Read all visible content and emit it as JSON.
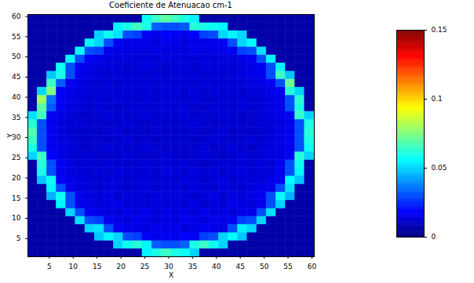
{
  "chart_data": {
    "type": "heatmap",
    "title": "Coeficiente de Atenuacao cm-1",
    "x_label": "X",
    "y_label": "Y",
    "x": [
      1.5,
      3.5,
      5.5,
      7.5,
      9.5,
      11.5,
      13.5,
      15.5,
      17.5,
      19.5,
      21.5,
      23.5,
      25.5,
      27.5,
      29.5,
      31.5,
      33.5,
      35.5,
      37.5,
      39.5,
      41.5,
      43.5,
      45.5,
      47.5,
      49.5,
      51.5,
      53.5,
      55.5,
      57.5,
      59.5
    ],
    "y": [
      1.5,
      3.5,
      5.5,
      7.5,
      9.5,
      11.5,
      13.5,
      15.5,
      17.5,
      19.5,
      21.5,
      23.5,
      25.5,
      27.5,
      29.5,
      31.5,
      33.5,
      35.5,
      37.5,
      39.5,
      41.5,
      43.5,
      45.5,
      47.5,
      49.5,
      51.5,
      53.5,
      55.5,
      57.5,
      59.5
    ],
    "values": [
      [
        0.006,
        0.006,
        0.006,
        0.006,
        0.006,
        0.006,
        0.006,
        0.006,
        0.006,
        0.006,
        0.006,
        0.006,
        0.055,
        0.06,
        0.065,
        0.06,
        0.058,
        0.05,
        0.006,
        0.006,
        0.006,
        0.006,
        0.006,
        0.006,
        0.006,
        0.006,
        0.006,
        0.006,
        0.006,
        0.006
      ],
      [
        0.006,
        0.006,
        0.006,
        0.006,
        0.006,
        0.006,
        0.006,
        0.006,
        0.006,
        0.05,
        0.058,
        0.062,
        0.055,
        0.032,
        0.03,
        0.03,
        0.033,
        0.06,
        0.065,
        0.058,
        0.05,
        0.006,
        0.006,
        0.006,
        0.006,
        0.006,
        0.006,
        0.006,
        0.006,
        0.006
      ],
      [
        0.006,
        0.006,
        0.006,
        0.006,
        0.006,
        0.006,
        0.006,
        0.048,
        0.055,
        0.05,
        0.03,
        0.028,
        0.018,
        0.016,
        0.017,
        0.016,
        0.018,
        0.017,
        0.028,
        0.03,
        0.05,
        0.056,
        0.048,
        0.006,
        0.006,
        0.006,
        0.006,
        0.006,
        0.006,
        0.006
      ],
      [
        0.006,
        0.006,
        0.006,
        0.006,
        0.006,
        0.006,
        0.05,
        0.052,
        0.03,
        0.017,
        0.015,
        0.016,
        0.014,
        0.016,
        0.015,
        0.016,
        0.014,
        0.015,
        0.017,
        0.016,
        0.015,
        0.03,
        0.054,
        0.05,
        0.006,
        0.006,
        0.006,
        0.006,
        0.006,
        0.006
      ],
      [
        0.006,
        0.006,
        0.006,
        0.006,
        0.006,
        0.052,
        0.03,
        0.028,
        0.016,
        0.015,
        0.014,
        0.016,
        0.015,
        0.013,
        0.015,
        0.014,
        0.016,
        0.015,
        0.014,
        0.016,
        0.015,
        0.017,
        0.028,
        0.03,
        0.05,
        0.006,
        0.006,
        0.006,
        0.006,
        0.006
      ],
      [
        0.006,
        0.006,
        0.006,
        0.006,
        0.05,
        0.03,
        0.017,
        0.015,
        0.014,
        0.013,
        0.015,
        0.014,
        0.016,
        0.013,
        0.015,
        0.014,
        0.015,
        0.013,
        0.016,
        0.014,
        0.015,
        0.013,
        0.015,
        0.016,
        0.03,
        0.052,
        0.006,
        0.006,
        0.006,
        0.006
      ],
      [
        0.006,
        0.006,
        0.006,
        0.055,
        0.03,
        0.016,
        0.015,
        0.013,
        0.014,
        0.015,
        0.013,
        0.014,
        0.012,
        0.014,
        0.013,
        0.014,
        0.013,
        0.015,
        0.012,
        0.014,
        0.013,
        0.015,
        0.014,
        0.013,
        0.016,
        0.03,
        0.05,
        0.006,
        0.006,
        0.006
      ],
      [
        0.006,
        0.006,
        0.045,
        0.058,
        0.03,
        0.016,
        0.014,
        0.013,
        0.015,
        0.012,
        0.014,
        0.013,
        0.012,
        0.014,
        0.013,
        0.013,
        0.014,
        0.012,
        0.013,
        0.015,
        0.012,
        0.014,
        0.013,
        0.015,
        0.016,
        0.03,
        0.056,
        0.045,
        0.006,
        0.006
      ],
      [
        0.006,
        0.006,
        0.055,
        0.03,
        0.016,
        0.014,
        0.013,
        0.012,
        0.014,
        0.013,
        0.012,
        0.013,
        0.014,
        0.012,
        0.013,
        0.013,
        0.012,
        0.014,
        0.013,
        0.012,
        0.014,
        0.013,
        0.012,
        0.014,
        0.015,
        0.016,
        0.03,
        0.052,
        0.006,
        0.006
      ],
      [
        0.006,
        0.048,
        0.058,
        0.018,
        0.015,
        0.014,
        0.013,
        0.012,
        0.014,
        0.013,
        0.012,
        0.013,
        0.014,
        0.012,
        0.013,
        0.012,
        0.014,
        0.013,
        0.012,
        0.013,
        0.014,
        0.012,
        0.013,
        0.014,
        0.013,
        0.015,
        0.017,
        0.056,
        0.048,
        0.006
      ],
      [
        0.006,
        0.06,
        0.03,
        0.016,
        0.014,
        0.013,
        0.012,
        0.013,
        0.012,
        0.014,
        0.013,
        0.012,
        0.013,
        0.012,
        0.014,
        0.013,
        0.012,
        0.014,
        0.012,
        0.013,
        0.012,
        0.013,
        0.014,
        0.012,
        0.013,
        0.014,
        0.016,
        0.03,
        0.055,
        0.006
      ],
      [
        0.006,
        0.062,
        0.03,
        0.017,
        0.014,
        0.012,
        0.013,
        0.012,
        0.013,
        0.012,
        0.011,
        0.012,
        0.013,
        0.012,
        0.013,
        0.012,
        0.013,
        0.012,
        0.011,
        0.012,
        0.013,
        0.012,
        0.013,
        0.012,
        0.014,
        0.013,
        0.016,
        0.03,
        0.058,
        0.006
      ],
      [
        0.05,
        0.065,
        0.018,
        0.015,
        0.013,
        0.012,
        0.013,
        0.012,
        0.011,
        0.012,
        0.013,
        0.012,
        0.011,
        0.012,
        0.013,
        0.012,
        0.011,
        0.012,
        0.013,
        0.012,
        0.011,
        0.012,
        0.013,
        0.012,
        0.013,
        0.014,
        0.015,
        0.017,
        0.062,
        0.05
      ],
      [
        0.06,
        0.03,
        0.017,
        0.015,
        0.013,
        0.012,
        0.011,
        0.012,
        0.013,
        0.012,
        0.011,
        0.012,
        0.013,
        0.012,
        0.011,
        0.012,
        0.011,
        0.012,
        0.013,
        0.011,
        0.012,
        0.013,
        0.012,
        0.011,
        0.013,
        0.014,
        0.015,
        0.016,
        0.03,
        0.058
      ],
      [
        0.065,
        0.03,
        0.016,
        0.014,
        0.013,
        0.012,
        0.011,
        0.012,
        0.011,
        0.012,
        0.013,
        0.011,
        0.012,
        0.011,
        0.012,
        0.011,
        0.012,
        0.011,
        0.012,
        0.013,
        0.012,
        0.011,
        0.012,
        0.013,
        0.012,
        0.014,
        0.015,
        0.017,
        0.03,
        0.06
      ],
      [
        0.068,
        0.03,
        0.017,
        0.014,
        0.012,
        0.011,
        0.012,
        0.011,
        0.012,
        0.013,
        0.011,
        0.012,
        0.011,
        0.012,
        0.011,
        0.012,
        0.011,
        0.012,
        0.011,
        0.012,
        0.013,
        0.011,
        0.012,
        0.011,
        0.012,
        0.013,
        0.015,
        0.016,
        0.03,
        0.062
      ],
      [
        0.062,
        0.03,
        0.016,
        0.014,
        0.012,
        0.013,
        0.011,
        0.012,
        0.011,
        0.012,
        0.013,
        0.012,
        0.011,
        0.012,
        0.012,
        0.011,
        0.012,
        0.013,
        0.012,
        0.011,
        0.012,
        0.012,
        0.011,
        0.012,
        0.013,
        0.013,
        0.014,
        0.016,
        0.03,
        0.06
      ],
      [
        0.052,
        0.066,
        0.017,
        0.015,
        0.013,
        0.012,
        0.011,
        0.012,
        0.013,
        0.012,
        0.011,
        0.012,
        0.013,
        0.012,
        0.012,
        0.012,
        0.013,
        0.011,
        0.012,
        0.012,
        0.013,
        0.012,
        0.011,
        0.012,
        0.013,
        0.014,
        0.015,
        0.018,
        0.064,
        0.05
      ],
      [
        0.006,
        0.07,
        0.032,
        0.017,
        0.014,
        0.013,
        0.012,
        0.013,
        0.012,
        0.011,
        0.012,
        0.013,
        0.012,
        0.012,
        0.013,
        0.012,
        0.013,
        0.012,
        0.011,
        0.013,
        0.012,
        0.012,
        0.013,
        0.012,
        0.013,
        0.014,
        0.016,
        0.03,
        0.06,
        0.006
      ],
      [
        0.006,
        0.08,
        0.035,
        0.018,
        0.015,
        0.013,
        0.012,
        0.013,
        0.012,
        0.013,
        0.012,
        0.012,
        0.013,
        0.012,
        0.013,
        0.013,
        0.012,
        0.013,
        0.012,
        0.012,
        0.013,
        0.012,
        0.013,
        0.012,
        0.013,
        0.014,
        0.016,
        0.03,
        0.062,
        0.006
      ],
      [
        0.006,
        0.05,
        0.075,
        0.018,
        0.015,
        0.014,
        0.013,
        0.012,
        0.013,
        0.012,
        0.013,
        0.012,
        0.013,
        0.012,
        0.013,
        0.013,
        0.012,
        0.013,
        0.012,
        0.013,
        0.012,
        0.013,
        0.012,
        0.013,
        0.014,
        0.015,
        0.017,
        0.062,
        0.05,
        0.006
      ],
      [
        0.006,
        0.006,
        0.065,
        0.032,
        0.017,
        0.015,
        0.013,
        0.012,
        0.013,
        0.012,
        0.013,
        0.012,
        0.013,
        0.012,
        0.013,
        0.012,
        0.013,
        0.012,
        0.013,
        0.012,
        0.013,
        0.012,
        0.013,
        0.014,
        0.015,
        0.017,
        0.03,
        0.072,
        0.006,
        0.006
      ],
      [
        0.006,
        0.006,
        0.048,
        0.06,
        0.03,
        0.016,
        0.014,
        0.013,
        0.012,
        0.013,
        0.012,
        0.013,
        0.012,
        0.013,
        0.012,
        0.013,
        0.012,
        0.013,
        0.012,
        0.013,
        0.012,
        0.013,
        0.014,
        0.015,
        0.016,
        0.03,
        0.065,
        0.048,
        0.006,
        0.006
      ],
      [
        0.006,
        0.006,
        0.006,
        0.058,
        0.03,
        0.017,
        0.015,
        0.013,
        0.014,
        0.013,
        0.012,
        0.013,
        0.014,
        0.013,
        0.012,
        0.013,
        0.014,
        0.012,
        0.013,
        0.014,
        0.013,
        0.012,
        0.014,
        0.015,
        0.017,
        0.03,
        0.055,
        0.006,
        0.006,
        0.006
      ],
      [
        0.006,
        0.006,
        0.006,
        0.006,
        0.055,
        0.03,
        0.017,
        0.015,
        0.014,
        0.013,
        0.014,
        0.013,
        0.014,
        0.013,
        0.014,
        0.013,
        0.014,
        0.013,
        0.014,
        0.013,
        0.014,
        0.013,
        0.015,
        0.017,
        0.03,
        0.055,
        0.006,
        0.006,
        0.006,
        0.006
      ],
      [
        0.006,
        0.006,
        0.006,
        0.006,
        0.006,
        0.056,
        0.03,
        0.028,
        0.016,
        0.015,
        0.014,
        0.015,
        0.014,
        0.015,
        0.014,
        0.015,
        0.014,
        0.015,
        0.014,
        0.015,
        0.016,
        0.017,
        0.028,
        0.03,
        0.052,
        0.006,
        0.006,
        0.006,
        0.006,
        0.006
      ],
      [
        0.006,
        0.006,
        0.006,
        0.006,
        0.006,
        0.006,
        0.055,
        0.05,
        0.03,
        0.017,
        0.015,
        0.016,
        0.015,
        0.014,
        0.016,
        0.015,
        0.014,
        0.016,
        0.015,
        0.016,
        0.017,
        0.03,
        0.05,
        0.056,
        0.006,
        0.006,
        0.006,
        0.006,
        0.006,
        0.006
      ],
      [
        0.006,
        0.006,
        0.006,
        0.006,
        0.006,
        0.006,
        0.006,
        0.05,
        0.058,
        0.052,
        0.03,
        0.028,
        0.017,
        0.016,
        0.018,
        0.017,
        0.016,
        0.018,
        0.028,
        0.03,
        0.05,
        0.055,
        0.05,
        0.006,
        0.006,
        0.006,
        0.006,
        0.006,
        0.006,
        0.006
      ],
      [
        0.006,
        0.006,
        0.006,
        0.006,
        0.006,
        0.006,
        0.006,
        0.006,
        0.006,
        0.055,
        0.06,
        0.065,
        0.06,
        0.033,
        0.03,
        0.03,
        0.032,
        0.062,
        0.06,
        0.058,
        0.055,
        0.006,
        0.006,
        0.006,
        0.006,
        0.006,
        0.006,
        0.006,
        0.006,
        0.006
      ],
      [
        0.006,
        0.006,
        0.006,
        0.006,
        0.006,
        0.006,
        0.006,
        0.006,
        0.006,
        0.006,
        0.006,
        0.006,
        0.058,
        0.065,
        0.07,
        0.065,
        0.06,
        0.055,
        0.006,
        0.006,
        0.006,
        0.006,
        0.006,
        0.006,
        0.006,
        0.006,
        0.006,
        0.006,
        0.006,
        0.006
      ]
    ],
    "xlim": [
      0.5,
      60.5
    ],
    "ylim": [
      0.5,
      60.5
    ],
    "xticks": [
      5,
      10,
      15,
      20,
      25,
      30,
      35,
      40,
      45,
      50,
      55,
      60
    ],
    "yticks": [
      5,
      10,
      15,
      20,
      25,
      30,
      35,
      40,
      45,
      50,
      55,
      60
    ],
    "color": "jet",
    "colorbar_range": [
      0,
      0.15
    ],
    "colorbar_ticks": [
      0,
      0.05,
      0.1,
      0.15
    ]
  }
}
